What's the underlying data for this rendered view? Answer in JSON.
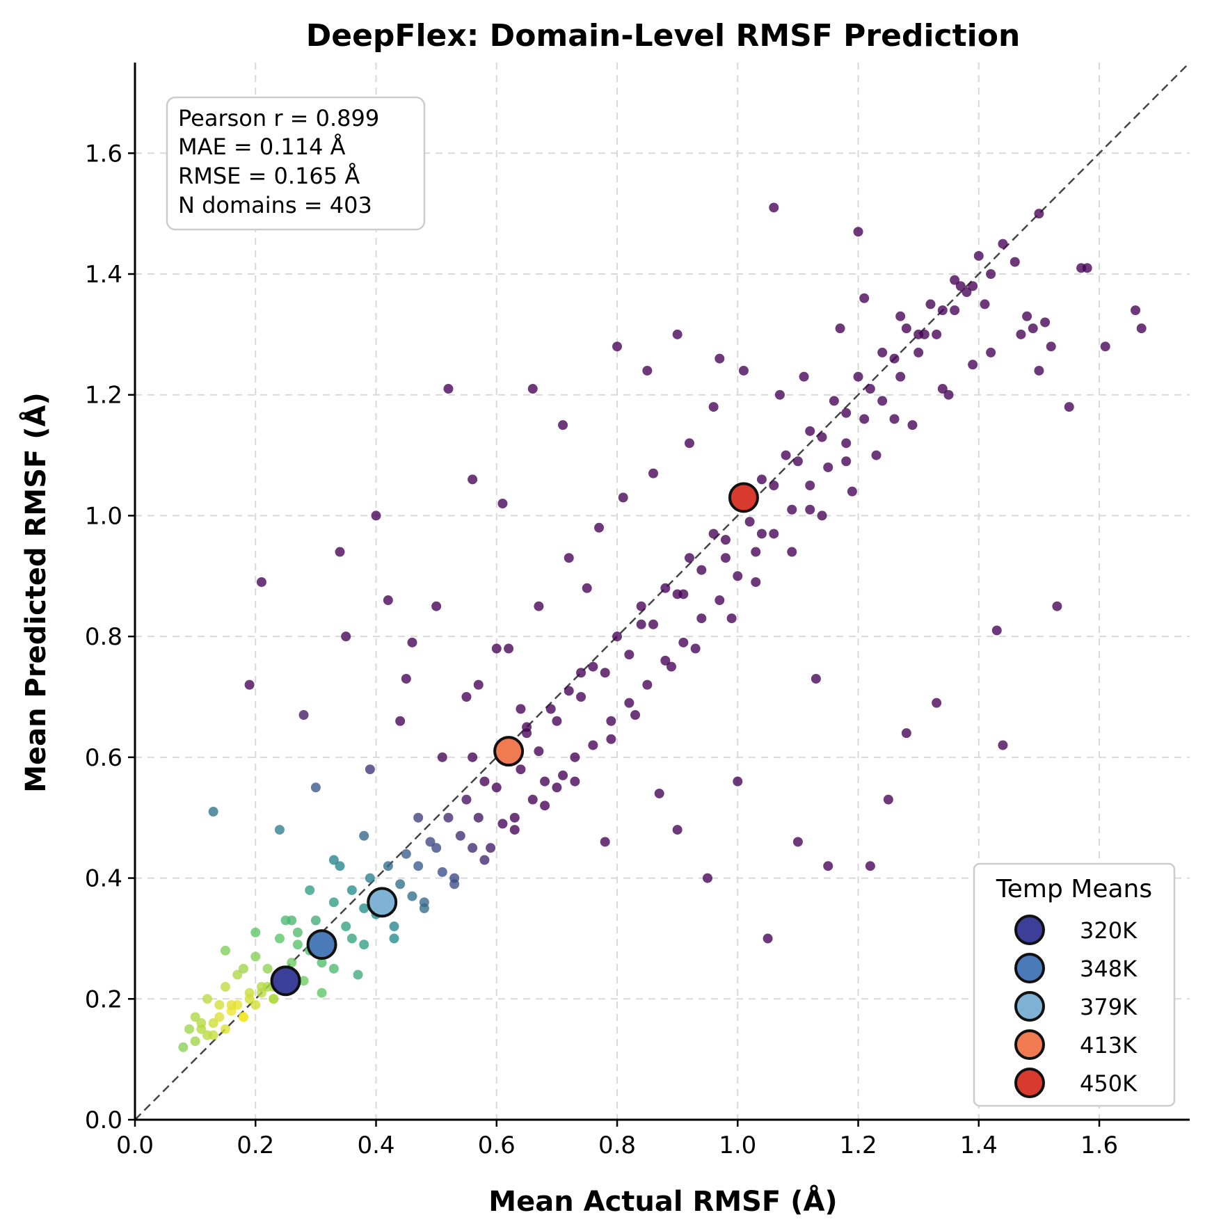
{
  "chart_data": {
    "type": "scatter",
    "title": "DeepFlex: Domain-Level RMSF Prediction",
    "xlabel": "Mean Actual RMSF (Å)",
    "ylabel": "Mean Predicted RMSF (Å)",
    "xlim": [
      0.0,
      1.75
    ],
    "ylim": [
      0.0,
      1.75
    ],
    "x_ticks": [
      "0.0",
      "0.2",
      "0.4",
      "0.6",
      "0.8",
      "1.0",
      "1.2",
      "1.4",
      "1.6"
    ],
    "y_ticks": [
      "0.0",
      "0.2",
      "0.4",
      "0.6",
      "0.8",
      "1.0",
      "1.2",
      "1.4",
      "1.6"
    ],
    "grid": true,
    "reference_line": "y = x (dashed)",
    "point_colormap": "viridis (density)",
    "stats": [
      "Pearson r = 0.899",
      "MAE = 0.114 Å",
      "RMSE = 0.165 Å",
      "N domains = 403"
    ],
    "legend": {
      "title": "Temp Means",
      "placement": "lower-right"
    },
    "temperature_means": [
      {
        "name": "320K",
        "x": 0.25,
        "y": 0.23,
        "color": "#3b3f97"
      },
      {
        "name": "348K",
        "x": 0.31,
        "y": 0.29,
        "color": "#4a7ab8"
      },
      {
        "name": "379K",
        "x": 0.41,
        "y": 0.36,
        "color": "#7fb2d5"
      },
      {
        "name": "413K",
        "x": 0.62,
        "y": 0.61,
        "color": "#f07a52"
      },
      {
        "name": "450K",
        "x": 1.01,
        "y": 1.03,
        "color": "#d93a2e"
      }
    ],
    "series": [
      {
        "x": [
          0.08,
          0.1,
          0.11,
          0.12,
          0.13,
          0.14,
          0.15,
          0.16,
          0.17,
          0.18,
          0.19,
          0.2,
          0.21,
          0.22,
          0.23,
          0.24,
          0.25,
          0.1,
          0.12,
          0.14,
          0.15,
          0.17,
          0.19,
          0.2,
          0.22,
          0.24,
          0.26,
          0.27,
          0.29,
          0.3,
          0.32,
          0.33,
          0.35,
          0.36,
          0.38,
          0.39,
          0.41,
          0.42,
          0.44,
          0.45,
          0.47,
          0.49,
          0.5,
          0.52,
          0.54,
          0.55,
          0.57,
          0.58,
          0.6,
          0.62,
          0.64,
          0.65,
          0.67,
          0.69,
          0.7,
          0.72,
          0.74,
          0.76,
          0.78,
          0.8,
          0.82,
          0.84,
          0.86,
          0.88,
          0.9,
          0.92,
          0.94,
          0.96,
          0.98,
          1.0,
          1.02,
          1.04,
          1.06,
          1.08,
          1.1,
          1.12,
          1.14,
          1.16,
          1.18,
          1.2,
          1.22,
          1.24,
          1.26,
          1.28,
          1.3,
          1.32,
          1.34,
          1.36,
          1.38,
          1.4,
          1.42,
          1.44,
          1.46,
          1.48,
          1.5,
          1.52,
          1.55,
          1.58,
          1.61,
          1.66,
          0.13,
          0.19,
          0.21,
          0.24,
          0.28,
          0.34,
          0.4,
          0.46,
          0.52,
          0.56,
          0.61,
          0.66,
          0.71,
          0.75,
          0.8,
          0.85,
          0.9,
          0.97,
          1.06,
          1.1,
          1.2,
          1.28,
          1.43,
          1.44,
          1.53,
          0.35,
          0.42,
          0.5,
          0.6,
          0.7,
          0.9,
          1.0,
          1.15,
          1.25,
          0.3,
          0.45,
          0.55,
          0.65,
          0.78,
          0.87,
          0.95,
          1.05,
          1.13,
          1.22,
          1.33,
          1.45,
          0.18,
          0.23,
          0.27,
          0.31,
          0.37,
          0.43,
          0.48,
          0.53,
          0.59,
          0.63,
          0.68,
          0.73,
          0.79,
          0.83,
          0.89,
          0.93,
          0.99,
          1.03,
          1.09,
          1.14,
          1.19,
          1.23,
          1.29,
          1.35,
          1.39,
          1.47,
          1.51,
          0.26,
          0.33,
          0.39,
          0.44,
          0.51,
          0.57,
          0.62,
          0.67,
          0.72,
          0.77,
          0.81,
          0.86,
          0.92,
          0.96,
          1.01,
          1.07,
          1.11,
          1.17,
          1.21,
          1.27,
          1.31,
          1.37,
          1.41,
          1.49,
          1.57,
          1.67,
          0.15,
          0.2,
          0.25,
          0.29,
          0.34,
          0.38,
          0.47,
          0.56,
          0.64,
          0.74,
          0.84,
          0.91,
          0.98,
          1.04,
          1.12,
          1.18,
          1.26,
          1.34,
          1.42,
          1.5,
          0.09,
          0.11,
          0.13,
          0.16,
          0.18,
          0.21,
          0.23,
          0.26,
          0.28,
          0.31,
          0.33,
          0.36,
          0.38,
          0.4,
          0.43,
          0.46,
          0.48,
          0.51,
          0.53,
          0.56,
          0.58,
          0.61,
          0.63,
          0.66,
          0.68,
          0.71,
          0.73,
          0.76,
          0.79,
          0.82,
          0.85,
          0.88,
          0.91,
          0.94,
          0.97,
          1.0,
          1.03,
          1.06,
          1.09,
          1.12,
          1.15,
          1.18,
          1.21,
          1.24,
          1.27,
          1.3,
          1.33,
          1.36,
          1.39
        ],
        "y": [
          0.12,
          0.13,
          0.15,
          0.14,
          0.16,
          0.17,
          0.15,
          0.18,
          0.19,
          0.17,
          0.2,
          0.19,
          0.21,
          0.22,
          0.2,
          0.23,
          0.24,
          0.17,
          0.2,
          0.19,
          0.22,
          0.24,
          0.21,
          0.27,
          0.25,
          0.3,
          0.26,
          0.31,
          0.28,
          0.33,
          0.3,
          0.36,
          0.32,
          0.38,
          0.35,
          0.4,
          0.37,
          0.42,
          0.39,
          0.44,
          0.42,
          0.46,
          0.45,
          0.5,
          0.47,
          0.53,
          0.5,
          0.56,
          0.55,
          0.6,
          0.58,
          0.64,
          0.61,
          0.68,
          0.66,
          0.71,
          0.7,
          0.75,
          0.74,
          0.8,
          0.77,
          0.85,
          0.82,
          0.88,
          0.87,
          0.93,
          0.91,
          0.97,
          0.96,
          1.02,
          0.99,
          1.06,
          1.05,
          1.1,
          1.09,
          1.14,
          1.13,
          1.19,
          1.17,
          1.23,
          1.21,
          1.27,
          1.26,
          1.31,
          1.3,
          1.35,
          1.34,
          1.39,
          1.37,
          1.43,
          1.4,
          1.45,
          1.42,
          1.33,
          1.5,
          1.28,
          1.18,
          1.41,
          1.28,
          1.34,
          0.51,
          0.72,
          0.89,
          0.48,
          0.67,
          0.94,
          1.0,
          0.79,
          1.21,
          1.06,
          1.02,
          1.21,
          1.15,
          0.88,
          1.28,
          1.24,
          1.3,
          1.26,
          1.51,
          0.46,
          1.47,
          0.64,
          0.81,
          0.62,
          0.85,
          0.8,
          0.86,
          0.85,
          0.78,
          0.55,
          0.48,
          0.56,
          0.42,
          0.53,
          0.55,
          0.73,
          0.7,
          0.65,
          0.46,
          0.54,
          0.4,
          0.3,
          0.73,
          0.42,
          0.69,
          0.39,
          0.25,
          0.22,
          0.29,
          0.21,
          0.24,
          0.3,
          0.35,
          0.4,
          0.45,
          0.5,
          0.56,
          0.6,
          0.63,
          0.67,
          0.75,
          0.78,
          0.83,
          0.89,
          0.94,
          1.0,
          1.04,
          1.1,
          1.15,
          1.2,
          1.25,
          1.3,
          1.32,
          0.33,
          0.43,
          0.58,
          0.66,
          0.6,
          0.72,
          0.78,
          0.85,
          0.93,
          0.98,
          1.03,
          1.07,
          1.12,
          1.18,
          1.24,
          1.2,
          1.23,
          1.31,
          1.36,
          1.33,
          1.3,
          1.38,
          1.35,
          1.31,
          1.41,
          1.31,
          0.28,
          0.31,
          0.33,
          0.38,
          0.42,
          0.47,
          0.5,
          0.6,
          0.68,
          0.74,
          0.82,
          0.87,
          0.93,
          0.97,
          1.01,
          1.09,
          1.16,
          1.21,
          1.27,
          1.24,
          0.15,
          0.16,
          0.14,
          0.19,
          0.17,
          0.22,
          0.2,
          0.24,
          0.23,
          0.26,
          0.25,
          0.3,
          0.29,
          0.34,
          0.32,
          0.37,
          0.36,
          0.41,
          0.39,
          0.45,
          0.43,
          0.49,
          0.48,
          0.53,
          0.52,
          0.57,
          0.56,
          0.62,
          0.66,
          0.69,
          0.72,
          0.76,
          0.79,
          0.83,
          0.86,
          0.9,
          0.94,
          0.97,
          1.01,
          1.05,
          1.08,
          1.12,
          1.16,
          1.19,
          1.23,
          1.27,
          1.3,
          1.34,
          1.38
        ]
      }
    ]
  }
}
